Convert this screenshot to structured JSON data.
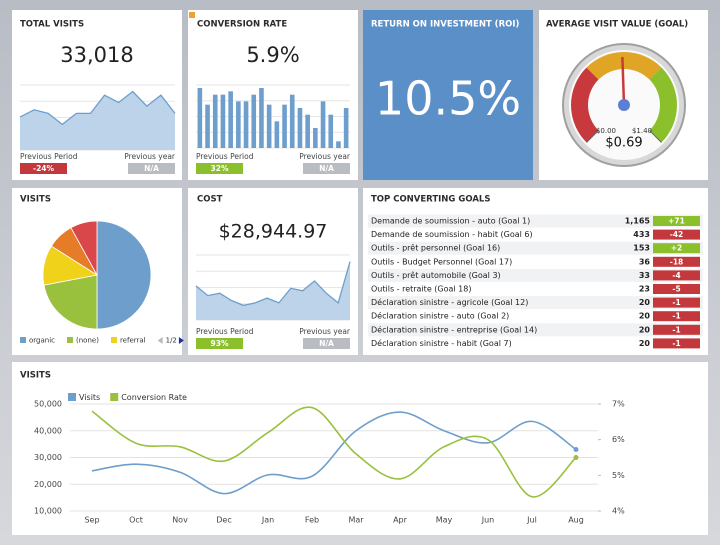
{
  "total_visits": {
    "title": "TOTAL VISITS",
    "value": "33,018",
    "trend": [
      9,
      11,
      10,
      7,
      10,
      10,
      15,
      13,
      16,
      12,
      15,
      10
    ],
    "previous_period_label": "Previous Period",
    "previous_period": "-24%",
    "previous_year_label": "Previous year",
    "previous_year": "N/A"
  },
  "conversion_rate": {
    "title": "CONVERSION RATE",
    "value": "5.9%",
    "bars": [
      9,
      6.5,
      8,
      8,
      8.5,
      7,
      7,
      8,
      9,
      6.5,
      4,
      6.5,
      8,
      6,
      5,
      3,
      7,
      5,
      1,
      6
    ],
    "previous_period_label": "Previous Period",
    "previous_period": "32%",
    "previous_year_label": "Previous year",
    "previous_year": "N/A"
  },
  "roi": {
    "title": "RETURN ON INVESTMENT (ROI)",
    "value": "10.5%"
  },
  "average_visit_value": {
    "title": "AVERAGE VISIT VALUE (GOAL)",
    "value": 0.69,
    "value_label": "$0.69",
    "min": {
      "value": 0,
      "label": "$0.00"
    },
    "max": {
      "value": 1.4,
      "label": "$1.40"
    }
  },
  "visits_pie": {
    "title": "VISITS",
    "type": "pie",
    "categories": [
      "organic",
      "(none)",
      "referral",
      null,
      null
    ],
    "values": [
      50,
      22,
      12,
      8,
      8
    ],
    "colors": [
      "#6e9fcc",
      "#99c13e",
      "#f1d21a",
      "#e67c27",
      "#d9474a"
    ],
    "page": "1/2"
  },
  "cost": {
    "title": "COST",
    "value": "$28,944.97",
    "trend": [
      7,
      5,
      5.5,
      4,
      3,
      3.5,
      4.5,
      3.5,
      6.5,
      6,
      8,
      5.5,
      3.5,
      12
    ],
    "previous_period_label": "Previous Period",
    "previous_period": "93%",
    "previous_year_label": "Previous year",
    "previous_year": "N/A"
  },
  "top_goals": {
    "title": "TOP CONVERTING GOALS",
    "rows": [
      {
        "name": "Demande de soumission - auto (Goal 1)",
        "count": "1,165",
        "change": "+71"
      },
      {
        "name": "Demande de soumission - habit (Goal 6)",
        "count": "433",
        "change": "-42"
      },
      {
        "name": "Outils - prêt personnel (Goal 16)",
        "count": "153",
        "change": "+2"
      },
      {
        "name": "Outils - Budget Personnel (Goal 17)",
        "count": "36",
        "change": "-18"
      },
      {
        "name": "Outils - prêt automobile (Goal 3)",
        "count": "33",
        "change": "-4"
      },
      {
        "name": "Outils - retraite (Goal 18)",
        "count": "23",
        "change": "-5"
      },
      {
        "name": "Déclaration sinistre - agricole (Goal 12)",
        "count": "20",
        "change": "-1"
      },
      {
        "name": "Déclaration sinistre - auto (Goal 2)",
        "count": "20",
        "change": "-1"
      },
      {
        "name": "Déclaration sinistre - entreprise (Goal 14)",
        "count": "20",
        "change": "-1"
      },
      {
        "name": "Déclaration sinistre - habit (Goal 7)",
        "count": "20",
        "change": "-1"
      }
    ]
  },
  "visits_chart": {
    "title": "VISITS",
    "type": "line",
    "categories": [
      "Sep",
      "Oct",
      "Nov",
      "Dec",
      "Jan",
      "Feb",
      "Mar",
      "Apr",
      "May",
      "Jun",
      "Jul",
      "Aug"
    ],
    "series": [
      {
        "name": "Visits",
        "color": "#6e9fcc",
        "values": [
          25000,
          27500,
          24500,
          16500,
          23500,
          23000,
          40000,
          47000,
          40000,
          35500,
          43500,
          33000
        ]
      },
      {
        "name": "Conversion Rate",
        "color": "#99c13e",
        "axis": "y2",
        "values": [
          6.8,
          5.9,
          5.8,
          5.4,
          6.2,
          6.9,
          5.6,
          4.9,
          5.8,
          6.0,
          4.4,
          5.5
        ]
      }
    ],
    "ylim": [
      10000,
      50000
    ],
    "yticks": [
      {
        "value": 10000,
        "label": "10,000"
      },
      {
        "value": 20000,
        "label": "20,000"
      },
      {
        "value": 30000,
        "label": "30,000"
      },
      {
        "value": 40000,
        "label": "40,000"
      },
      {
        "value": 50000,
        "label": "50,000"
      }
    ],
    "y2lim": [
      4,
      7
    ],
    "y2ticks": [
      {
        "value": 4,
        "label": "4%"
      },
      {
        "value": 5,
        "label": "5%"
      },
      {
        "value": 6,
        "label": "6%"
      },
      {
        "value": 7,
        "label": "7%"
      }
    ],
    "grid": true
  }
}
